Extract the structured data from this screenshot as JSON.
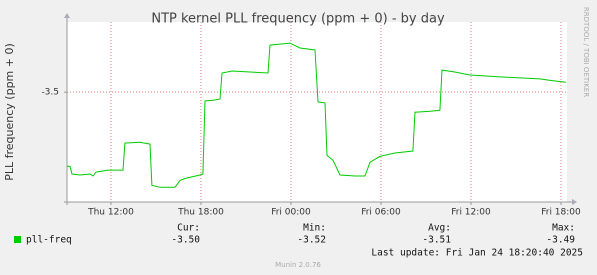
{
  "chart_data": {
    "type": "line",
    "title": "NTP kernel PLL frequency (ppm + 0) - by day",
    "y_label": "PLL frequency (ppm + 0)",
    "side_text": "RRDTOOL / TOBI OETIKER",
    "xlim": [
      9.07,
      42.4
    ],
    "xticks": [
      {
        "value": 12,
        "label": "Thu 12:00"
      },
      {
        "value": 18,
        "label": "Thu 18:00"
      },
      {
        "value": 24,
        "label": "Fri 00:00"
      },
      {
        "value": 30,
        "label": "Fri 06:00"
      },
      {
        "value": 36,
        "label": "Fri 12:00"
      },
      {
        "value": 42,
        "label": "Fri 18:00"
      }
    ],
    "ylim": [
      -3.5224,
      -3.4857
    ],
    "yticks": [
      -3.5
    ],
    "grid": true,
    "series": [
      {
        "name": "pll-freq",
        "color": "#00cc00",
        "x": [
          9.07,
          9.27,
          9.4,
          9.93,
          10.6,
          10.8,
          11,
          11.8,
          12.8,
          12.93,
          13.93,
          14.6,
          14.73,
          15.27,
          16.27,
          16.6,
          16.93,
          17.93,
          18.13,
          18.27,
          18.93,
          19.27,
          19.4,
          20.07,
          21.27,
          22.47,
          22.6,
          23.27,
          23.93,
          24.2,
          24.6,
          25.6,
          25.8,
          26.27,
          26.4,
          26.8,
          27.27,
          28.27,
          28.93,
          29.27,
          29.93,
          30.93,
          32.13,
          32.27,
          33.27,
          33.93,
          34.07,
          34.93,
          35.93,
          37.93,
          39.27,
          40.6,
          41.27,
          42.33
        ],
        "values": [
          -3.5151,
          -3.5151,
          -3.5167,
          -3.5169,
          -3.5167,
          -3.5171,
          -3.5163,
          -3.5159,
          -3.5159,
          -3.5104,
          -3.5102,
          -3.5106,
          -3.519,
          -3.5194,
          -3.5194,
          -3.518,
          -3.5176,
          -3.5169,
          -3.5167,
          -3.5018,
          -3.5016,
          -3.5014,
          -3.4961,
          -3.4957,
          -3.4959,
          -3.4961,
          -3.4904,
          -3.4902,
          -3.49,
          -3.4904,
          -3.491,
          -3.4914,
          -3.502,
          -3.5022,
          -3.5129,
          -3.5139,
          -3.5169,
          -3.5171,
          -3.5171,
          -3.5143,
          -3.5131,
          -3.5124,
          -3.512,
          -3.5041,
          -3.5039,
          -3.5037,
          -3.4955,
          -3.4959,
          -3.4965,
          -3.4969,
          -3.4971,
          -3.4973,
          -3.4976,
          -3.498
        ]
      }
    ],
    "stats": [
      {
        "label": "Cur:",
        "value": "-3.50"
      },
      {
        "label": "Min:",
        "value": "-3.52"
      },
      {
        "label": "Avg:",
        "value": "-3.51"
      },
      {
        "label": "Max:",
        "value": "-3.49"
      }
    ],
    "last_update": "Last update: Fri Jan 24 18:20:40 2025",
    "footer": "Munin 2.0.76"
  }
}
